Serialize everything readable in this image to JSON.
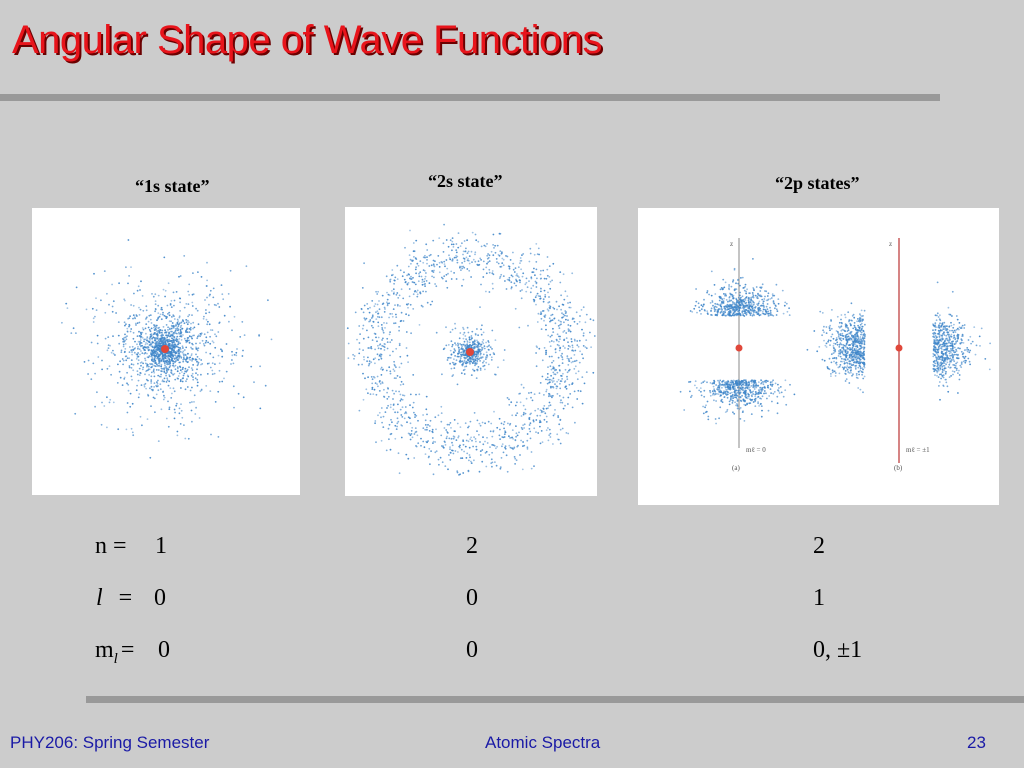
{
  "slide": {
    "title": "Angular Shape of Wave Functions",
    "colors": {
      "title": "#e8141b",
      "background": "#cccccc",
      "footer_text": "#1a1aa6",
      "dots": "#3f86c9",
      "nucleus": "#e0473a"
    }
  },
  "panels": [
    {
      "caption": "“1s state”"
    },
    {
      "caption": "“2s state”"
    },
    {
      "caption": "“2p states”",
      "axis_label": "z",
      "sub_a": "(a)",
      "sub_b": "(b)",
      "ml_a": "mℓ = 0",
      "ml_b": "mℓ = ±1"
    }
  ],
  "quantum_numbers": {
    "n_label": "n =",
    "l_label": "l",
    "l_eq": "=",
    "ml_label_main": "m",
    "ml_label_sub": "l",
    "ml_eq": "=",
    "n_values": [
      "1",
      "2",
      "2"
    ],
    "l_values": [
      "0",
      "0",
      "1"
    ],
    "ml_values": [
      "0",
      "0",
      "0, ±1"
    ]
  },
  "footer": {
    "left": "PHY206: Spring Semester",
    "center": "Atomic Spectra",
    "page": "23"
  }
}
